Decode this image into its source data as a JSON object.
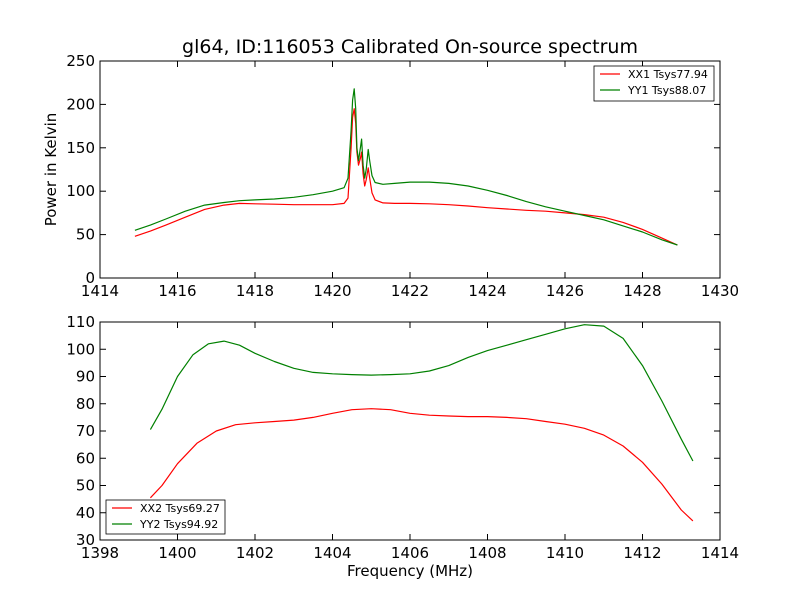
{
  "figure": {
    "title": "gl64, ID:116053 Calibrated On-source spectrum",
    "xlabel": "Frequency (MHz)"
  },
  "chart_data": [
    {
      "type": "line",
      "title": "gl64, ID:116053 Calibrated On-source spectrum",
      "xlabel": "",
      "ylabel": "Power in Kelvin",
      "xlim": [
        1414,
        1430
      ],
      "ylim": [
        0,
        250
      ],
      "xticks": [
        1414,
        1416,
        1418,
        1420,
        1422,
        1424,
        1426,
        1428,
        1430
      ],
      "yticks": [
        0,
        50,
        100,
        150,
        200,
        250
      ],
      "grid": false,
      "legend": "top-right",
      "series": [
        {
          "name": "XX1 Tsys77.94",
          "color": "#ff0000",
          "points": [
            [
              1414.9,
              48
            ],
            [
              1415.3,
              54
            ],
            [
              1415.7,
              61
            ],
            [
              1416.2,
              70
            ],
            [
              1416.7,
              79
            ],
            [
              1417.2,
              84
            ],
            [
              1417.6,
              86
            ],
            [
              1418.0,
              85.5
            ],
            [
              1418.5,
              85
            ],
            [
              1419.0,
              84.5
            ],
            [
              1419.5,
              84.5
            ],
            [
              1420.0,
              84.5
            ],
            [
              1420.3,
              86
            ],
            [
              1420.4,
              92
            ],
            [
              1420.48,
              150
            ],
            [
              1420.52,
              185
            ],
            [
              1420.56,
              195
            ],
            [
              1420.6,
              178
            ],
            [
              1420.63,
              145
            ],
            [
              1420.67,
              130
            ],
            [
              1420.72,
              138
            ],
            [
              1420.75,
              145
            ],
            [
              1420.79,
              120
            ],
            [
              1420.83,
              106
            ],
            [
              1420.87,
              113
            ],
            [
              1420.92,
              127
            ],
            [
              1420.96,
              115
            ],
            [
              1421.02,
              98
            ],
            [
              1421.1,
              90
            ],
            [
              1421.3,
              86.5
            ],
            [
              1421.6,
              86
            ],
            [
              1422.0,
              86
            ],
            [
              1422.5,
              85.5
            ],
            [
              1423.0,
              84.5
            ],
            [
              1423.5,
              83
            ],
            [
              1424.0,
              81
            ],
            [
              1424.5,
              79.5
            ],
            [
              1425.0,
              78
            ],
            [
              1425.5,
              77
            ],
            [
              1426.0,
              75
            ],
            [
              1426.5,
              73
            ],
            [
              1427.0,
              70
            ],
            [
              1427.5,
              64
            ],
            [
              1428.0,
              56
            ],
            [
              1428.5,
              46
            ],
            [
              1428.9,
              38
            ]
          ]
        },
        {
          "name": "YY1 Tsys88.07",
          "color": "#008000",
          "points": [
            [
              1414.9,
              55
            ],
            [
              1415.3,
              61
            ],
            [
              1415.7,
              68
            ],
            [
              1416.2,
              77
            ],
            [
              1416.7,
              84
            ],
            [
              1417.2,
              87
            ],
            [
              1417.6,
              89
            ],
            [
              1418.0,
              90
            ],
            [
              1418.5,
              91
            ],
            [
              1419.0,
              93
            ],
            [
              1419.5,
              96
            ],
            [
              1420.0,
              100
            ],
            [
              1420.3,
              104
            ],
            [
              1420.4,
              115
            ],
            [
              1420.48,
              170
            ],
            [
              1420.52,
              205
            ],
            [
              1420.56,
              218
            ],
            [
              1420.6,
              195
            ],
            [
              1420.63,
              150
            ],
            [
              1420.67,
              135
            ],
            [
              1420.72,
              150
            ],
            [
              1420.75,
              160
            ],
            [
              1420.79,
              130
            ],
            [
              1420.83,
              115
            ],
            [
              1420.87,
              125
            ],
            [
              1420.92,
              148
            ],
            [
              1420.96,
              135
            ],
            [
              1421.02,
              118
            ],
            [
              1421.1,
              110
            ],
            [
              1421.3,
              108
            ],
            [
              1421.6,
              109
            ],
            [
              1422.0,
              110.5
            ],
            [
              1422.5,
              110.5
            ],
            [
              1423.0,
              109
            ],
            [
              1423.5,
              106
            ],
            [
              1424.0,
              101
            ],
            [
              1424.5,
              95
            ],
            [
              1425.0,
              88
            ],
            [
              1425.5,
              82
            ],
            [
              1426.0,
              77
            ],
            [
              1426.5,
              72
            ],
            [
              1427.0,
              67
            ],
            [
              1427.5,
              60
            ],
            [
              1428.0,
              53
            ],
            [
              1428.5,
              44
            ],
            [
              1428.9,
              38
            ]
          ]
        }
      ]
    },
    {
      "type": "line",
      "title": "",
      "xlabel": "Frequency (MHz)",
      "ylabel": "",
      "xlim": [
        1398,
        1414
      ],
      "ylim": [
        30,
        110
      ],
      "xticks": [
        1398,
        1400,
        1402,
        1404,
        1406,
        1408,
        1410,
        1412,
        1414
      ],
      "yticks": [
        30,
        40,
        50,
        60,
        70,
        80,
        90,
        100,
        110
      ],
      "grid": false,
      "legend": "bottom-left",
      "series": [
        {
          "name": "XX2 Tsys69.27",
          "color": "#ff0000",
          "points": [
            [
              1399.3,
              45.5
            ],
            [
              1399.6,
              50
            ],
            [
              1400.0,
              58
            ],
            [
              1400.5,
              65.5
            ],
            [
              1401.0,
              70
            ],
            [
              1401.5,
              72.3
            ],
            [
              1402.0,
              73
            ],
            [
              1402.5,
              73.5
            ],
            [
              1403.0,
              74
            ],
            [
              1403.5,
              75
            ],
            [
              1404.0,
              76.5
            ],
            [
              1404.5,
              77.8
            ],
            [
              1405.0,
              78.2
            ],
            [
              1405.5,
              77.8
            ],
            [
              1406.0,
              76.5
            ],
            [
              1406.5,
              75.8
            ],
            [
              1407.0,
              75.5
            ],
            [
              1407.5,
              75.3
            ],
            [
              1408.0,
              75.3
            ],
            [
              1408.5,
              75
            ],
            [
              1409.0,
              74.5
            ],
            [
              1409.5,
              73.5
            ],
            [
              1410.0,
              72.5
            ],
            [
              1410.5,
              71
            ],
            [
              1411.0,
              68.5
            ],
            [
              1411.5,
              64.5
            ],
            [
              1412.0,
              58.5
            ],
            [
              1412.5,
              50.5
            ],
            [
              1413.0,
              41
            ],
            [
              1413.3,
              37
            ]
          ]
        },
        {
          "name": "YY2 Tsys94.92",
          "color": "#008000",
          "points": [
            [
              1399.3,
              70.5
            ],
            [
              1399.6,
              78
            ],
            [
              1400.0,
              90
            ],
            [
              1400.4,
              98
            ],
            [
              1400.8,
              102
            ],
            [
              1401.2,
              103
            ],
            [
              1401.6,
              101.5
            ],
            [
              1402.0,
              98.5
            ],
            [
              1402.5,
              95.5
            ],
            [
              1403.0,
              93
            ],
            [
              1403.5,
              91.5
            ],
            [
              1404.0,
              91
            ],
            [
              1404.5,
              90.7
            ],
            [
              1405.0,
              90.5
            ],
            [
              1405.5,
              90.7
            ],
            [
              1406.0,
              91
            ],
            [
              1406.5,
              92
            ],
            [
              1407.0,
              94
            ],
            [
              1407.5,
              97
            ],
            [
              1408.0,
              99.5
            ],
            [
              1408.5,
              101.5
            ],
            [
              1409.0,
              103.5
            ],
            [
              1409.5,
              105.5
            ],
            [
              1410.0,
              107.5
            ],
            [
              1410.5,
              109
            ],
            [
              1411.0,
              108.5
            ],
            [
              1411.5,
              104
            ],
            [
              1412.0,
              94
            ],
            [
              1412.5,
              81
            ],
            [
              1413.0,
              67
            ],
            [
              1413.3,
              59
            ]
          ]
        }
      ]
    }
  ]
}
